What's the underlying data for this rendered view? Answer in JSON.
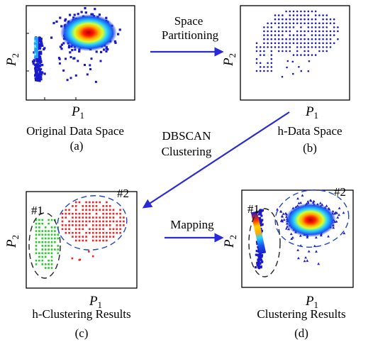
{
  "panels": {
    "a": {
      "x_axis": "P",
      "x_sub": "1",
      "y_axis": "P",
      "y_sub": "2",
      "caption": "Original Data Space",
      "tag": "(a)"
    },
    "b": {
      "x_axis": "P",
      "x_sub": "1",
      "y_axis": "P",
      "y_sub": "2",
      "caption": "h-Data Space",
      "tag": "(b)"
    },
    "c": {
      "x_axis": "P",
      "x_sub": "1",
      "y_axis": "P",
      "y_sub": "2",
      "caption": "h-Clustering Results",
      "tag": "(c)",
      "cluster1_label": "#1",
      "cluster2_label": "#2"
    },
    "d": {
      "x_axis": "P",
      "x_sub": "1",
      "y_axis": "P",
      "y_sub": "2",
      "caption": "Clustering Results",
      "tag": "(d)",
      "cluster1_label": "#1",
      "cluster2_label": "#2"
    }
  },
  "arrows": {
    "space_partitioning": {
      "line1": "Space",
      "line2": "Partitioning"
    },
    "dbscan": {
      "line1": "DBSCAN",
      "line2": "Clustering"
    },
    "mapping": {
      "line1": "Mapping"
    }
  },
  "colors": {
    "arrow": "#2a2ad8",
    "cluster1_points": "#22cc22",
    "cluster2_points": "#ee2020",
    "cluster1_ellipse": "#222222",
    "cluster2_ellipse": "#2244cc",
    "blue_points": "#1a1acc",
    "heat_hot": "#ff1a00",
    "heat_warm": "#ffd400",
    "heat_cool": "#2ad4ff"
  }
}
